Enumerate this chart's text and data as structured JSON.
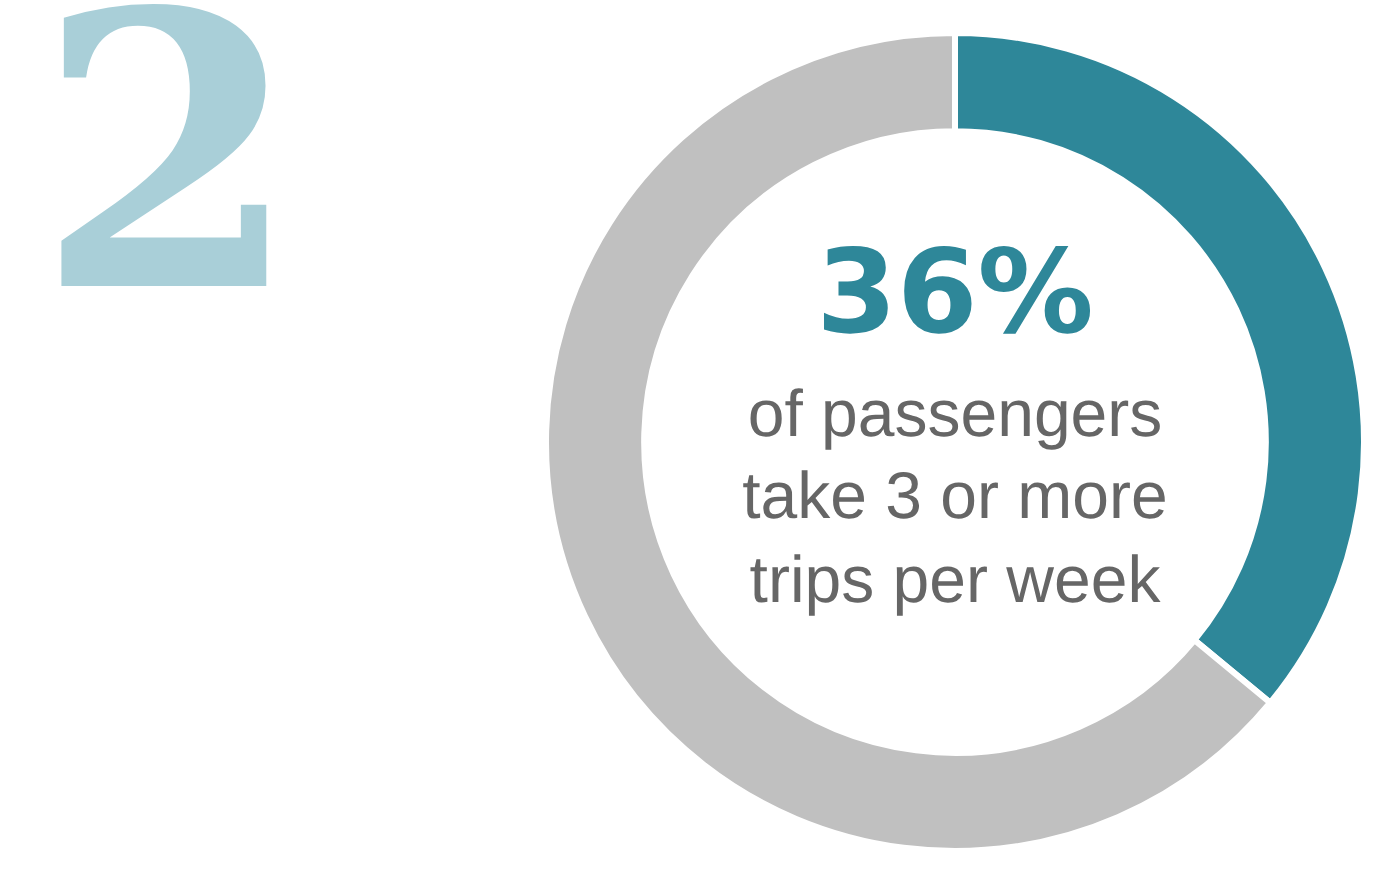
{
  "chart_data": {
    "type": "donut",
    "categories": [
      null,
      null
    ],
    "values": [
      36,
      64
    ],
    "colors": [
      "#2e8799",
      "#c0c0c0"
    ],
    "value_labels": [
      "36%",
      null
    ],
    "annotations": [
      "2",
      "of passengers take 3 or more trips per week"
    ],
    "legend": false
  }
}
